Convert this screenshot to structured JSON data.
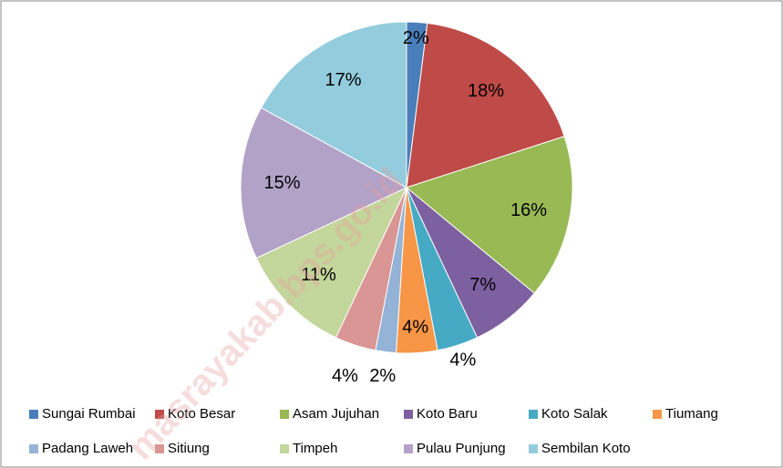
{
  "watermark": "masrayakab.bps.go.id",
  "chart_data": {
    "type": "pie",
    "categories": [
      "Sungai Rumbai",
      "Koto Besar",
      "Asam Jujuhan",
      "Koto Baru",
      "Koto Salak",
      "Tiumang",
      "Padang Laweh",
      "Sitiung",
      "Timpeh",
      "Pulau Punjung",
      "Sembilan Koto"
    ],
    "values": [
      2,
      18,
      16,
      7,
      4,
      4,
      2,
      4,
      11,
      15,
      17
    ],
    "value_labels": [
      "2%",
      "18%",
      "16%",
      "7%",
      "4%",
      "4%",
      "2%",
      "4%",
      "11%",
      "15%",
      "17%"
    ],
    "colors": [
      "#4a7ebb",
      "#be4b48",
      "#98b954",
      "#7d60a0",
      "#46aac5",
      "#f79646",
      "#95b3d7",
      "#d99694",
      "#c3d69b",
      "#b3a2c7",
      "#93cddd"
    ],
    "legend": "bottom"
  }
}
